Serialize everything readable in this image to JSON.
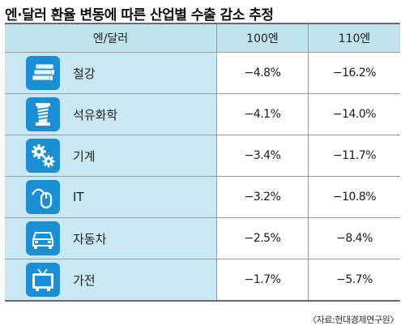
{
  "title": "엔·달러 환율 변동에 따른 산업별 수출 감소 추정",
  "header": {
    "col1": "엔/달러",
    "col2": "100엔",
    "col3": "110엔"
  },
  "rows": [
    {
      "label": "철강",
      "icon": "steel-coil-icon",
      "v100": "−4.8%",
      "v110": "−16.2%"
    },
    {
      "label": "석유화학",
      "icon": "fiber-spool-icon",
      "v100": "−4.1%",
      "v110": "−14.0%"
    },
    {
      "label": "기계",
      "icon": "gears-icon",
      "v100": "−3.4%",
      "v110": "−11.7%"
    },
    {
      "label": "IT",
      "icon": "mouse-icon",
      "v100": "−3.2%",
      "v110": "−10.8%"
    },
    {
      "label": "자동차",
      "icon": "car-icon",
      "v100": "−2.5%",
      "v110": "−8.4%"
    },
    {
      "label": "가전",
      "icon": "tv-icon",
      "v100": "−1.7%",
      "v110": "−5.7%"
    }
  ],
  "source": "〈자료:현대경제연구원〉",
  "colors": {
    "header_bg": "#bfe3ef",
    "label_bg": "#c9e8f3",
    "icon_bg": "#1a8fd3"
  }
}
